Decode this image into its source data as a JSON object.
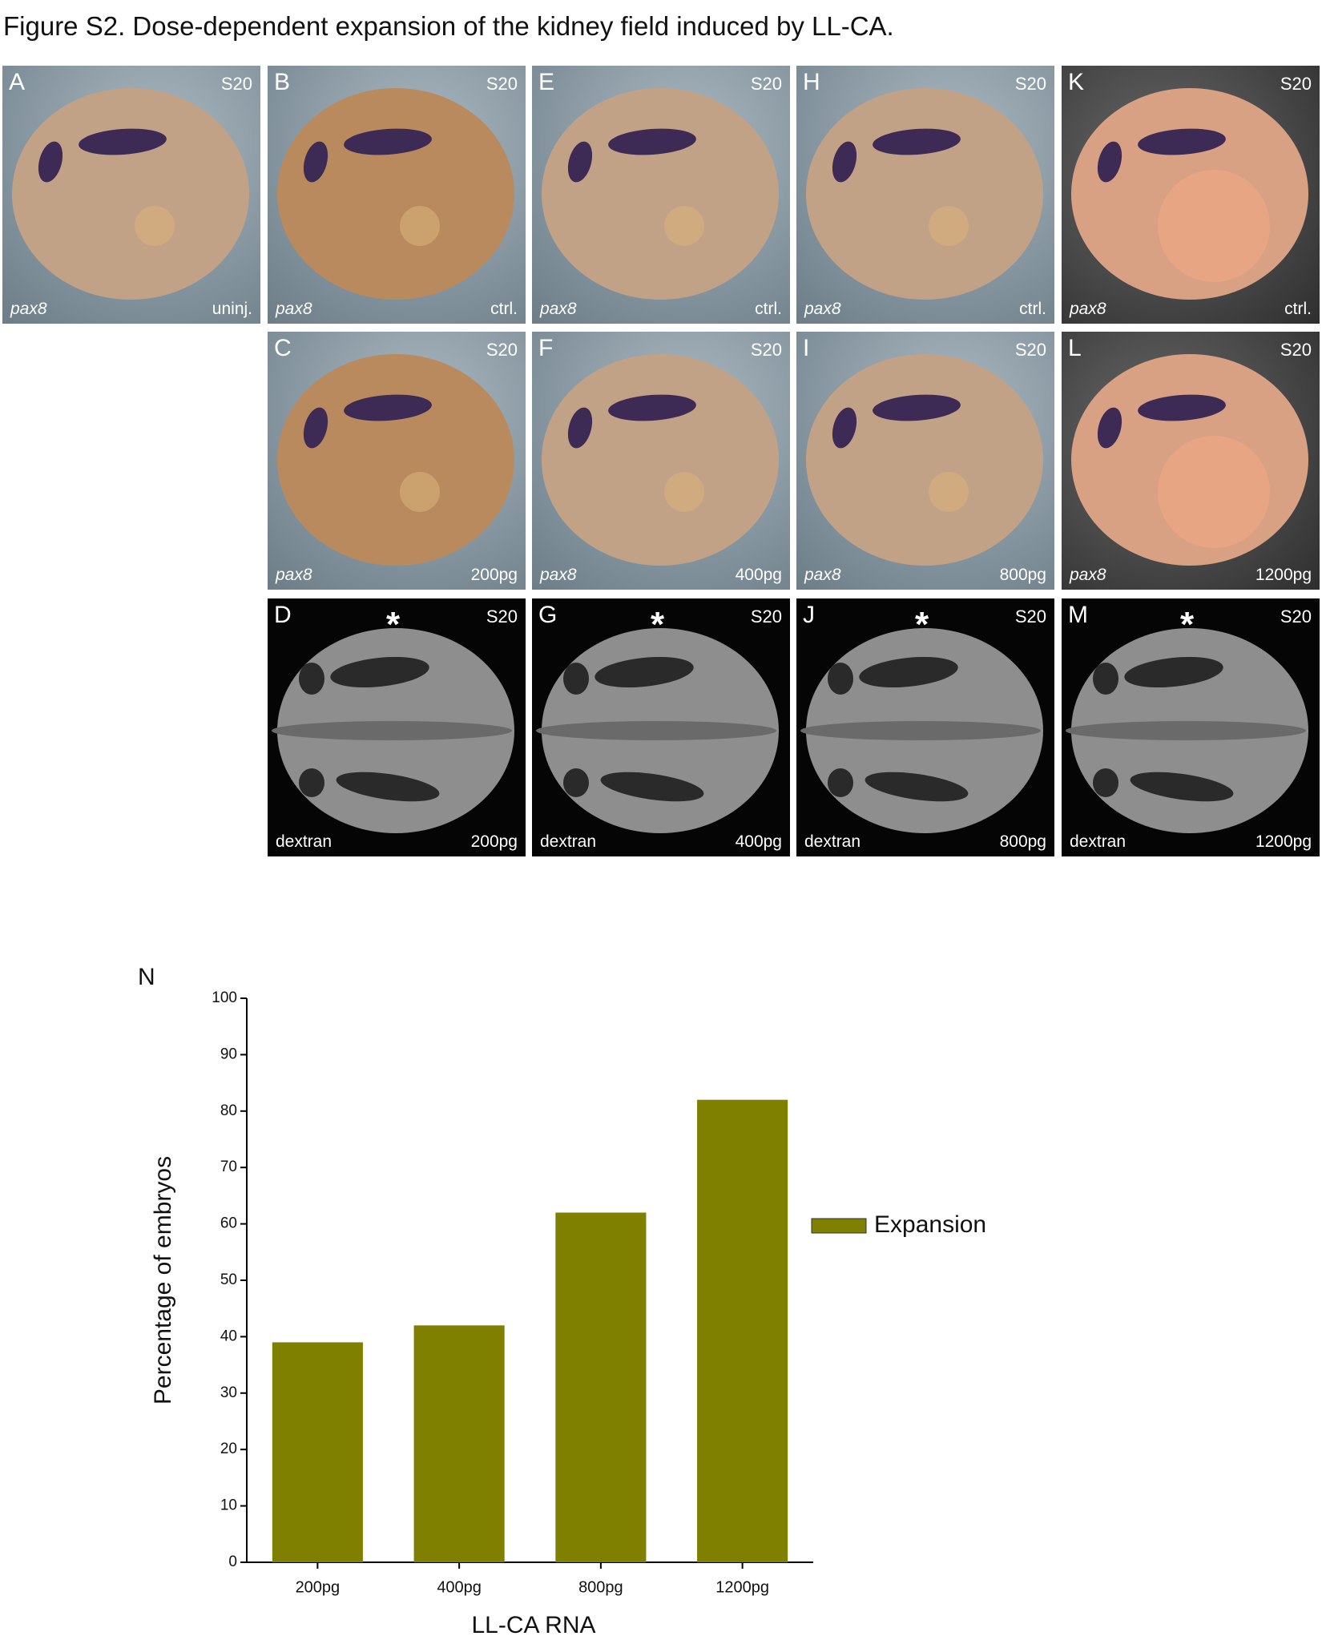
{
  "figure": {
    "title": "Figure S2. Dose-dependent expansion of the kidney field induced by LL-CA.",
    "panels": [
      {
        "letter": "A",
        "stage": "S20",
        "stain": "pax8",
        "condition": "uninj."
      },
      {
        "letter": "B",
        "stage": "S20",
        "stain": "pax8",
        "condition": "ctrl."
      },
      {
        "letter": "E",
        "stage": "S20",
        "stain": "pax8",
        "condition": "ctrl."
      },
      {
        "letter": "H",
        "stage": "S20",
        "stain": "pax8",
        "condition": "ctrl."
      },
      {
        "letter": "K",
        "stage": "S20",
        "stain": "pax8",
        "condition": "ctrl."
      },
      {
        "letter": "C",
        "stage": "S20",
        "stain": "pax8",
        "condition": "200pg"
      },
      {
        "letter": "F",
        "stage": "S20",
        "stain": "pax8",
        "condition": "400pg"
      },
      {
        "letter": "I",
        "stage": "S20",
        "stain": "pax8",
        "condition": "800pg"
      },
      {
        "letter": "L",
        "stage": "S20",
        "stain": "pax8",
        "condition": "1200pg"
      },
      {
        "letter": "D",
        "stage": "S20",
        "stain": "dextran",
        "condition": "200pg",
        "marker": "*"
      },
      {
        "letter": "G",
        "stage": "S20",
        "stain": "dextran",
        "condition": "400pg",
        "marker": "*"
      },
      {
        "letter": "J",
        "stage": "S20",
        "stain": "dextran",
        "condition": "800pg",
        "marker": "*"
      },
      {
        "letter": "M",
        "stage": "S20",
        "stain": "dextran",
        "condition": "1200pg",
        "marker": "*"
      }
    ]
  },
  "chart_data": {
    "type": "bar",
    "panel_label": "N",
    "y_label": "Percentage of embryos",
    "x_label": "LL-CA RNA",
    "categories": [
      "200pg",
      "400pg",
      "800pg",
      "1200pg"
    ],
    "series": [
      {
        "name": "Expansion",
        "color": "#808000",
        "values": [
          39,
          42,
          62,
          82
        ]
      }
    ],
    "ylim": [
      0,
      100
    ],
    "yticks": [
      0,
      10,
      20,
      30,
      40,
      50,
      60,
      70,
      80,
      90,
      100
    ],
    "grid": false
  }
}
